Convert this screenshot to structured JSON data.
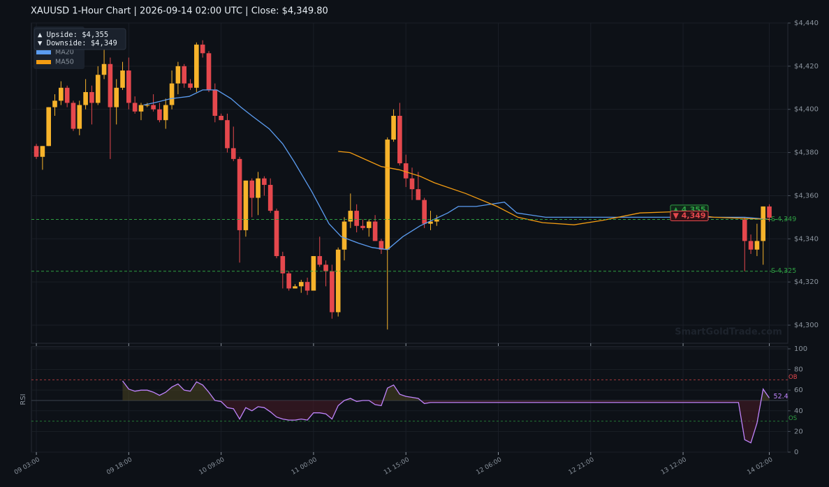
{
  "chart_data": [
    {
      "type": "candlestick",
      "title": "XAUUSD  1-Hour Chart  |  2026-09-14 02:00 UTC  |  Close: $4,349.80",
      "x": [
        0,
        1,
        2,
        3,
        4,
        5,
        6,
        7,
        8,
        9,
        10,
        11,
        12,
        13,
        14,
        15,
        16,
        17,
        18,
        19,
        20,
        21,
        22,
        23,
        24,
        25,
        26,
        27,
        28,
        29,
        30,
        31,
        32,
        33,
        34,
        35,
        36,
        37,
        38,
        39,
        40,
        41,
        42,
        43,
        44,
        45,
        46,
        47,
        48,
        49,
        50,
        51,
        52,
        53,
        54,
        55,
        56,
        57,
        58,
        59,
        60,
        61,
        62,
        63,
        64,
        65,
        115,
        116,
        117,
        118,
        119
      ],
      "open": [
        4383,
        4378,
        4383,
        4401,
        4404,
        4410,
        4403,
        4391,
        4402,
        4408,
        4403,
        4416,
        4421,
        4401,
        4410,
        4418,
        4403,
        4399,
        4402,
        4402,
        4400,
        4395,
        4402,
        4412,
        4420,
        4412,
        4410,
        4430,
        4426,
        4409,
        4397,
        4395,
        4382,
        4377,
        4344,
        4367,
        4359,
        4368,
        4365,
        4353,
        4332,
        4324,
        4317,
        4318,
        4320,
        4316,
        4332,
        4328,
        4325,
        4306,
        4335,
        4348,
        4353,
        4346,
        4345,
        4348,
        4339,
        4335,
        4386,
        4397,
        4375,
        4368,
        4363,
        4358,
        4347,
        4348,
        4349,
        4339,
        4335,
        4339,
        4355
      ],
      "high": [
        4384,
        4383,
        4401,
        4407,
        4413,
        4411,
        4404,
        4404,
        4414,
        4411,
        4420,
        4428,
        4424,
        4414,
        4422,
        4424,
        4406,
        4403,
        4403,
        4407,
        4403,
        4405,
        4418,
        4422,
        4421,
        4414,
        4431,
        4432,
        4427,
        4412,
        4398,
        4398,
        4392,
        4378,
        4367,
        4368,
        4371,
        4369,
        4368,
        4354,
        4334,
        4325,
        4319,
        4321,
        4322,
        4332,
        4341,
        4330,
        4328,
        4336,
        4350,
        4361,
        4356,
        4349,
        4349,
        4351,
        4340,
        4387,
        4400,
        4403,
        4379,
        4373,
        4371,
        4359,
        4353,
        4351,
        4350,
        4342,
        4347,
        4355,
        4356
      ],
      "low": [
        4377,
        4372,
        4383,
        4397,
        4402,
        4401,
        4390,
        4388,
        4400,
        4393,
        4402,
        4414,
        4377,
        4393,
        4409,
        4400,
        4398,
        4395,
        4401,
        4399,
        4394,
        4391,
        4400,
        4407,
        4410,
        4409,
        4408,
        4424,
        4408,
        4394,
        4395,
        4380,
        4376,
        4329,
        4341,
        4350,
        4351,
        4360,
        4352,
        4331,
        4317,
        4316,
        4317,
        4315,
        4314,
        4316,
        4327,
        4318,
        4303,
        4304,
        4330,
        4345,
        4343,
        4344,
        4341,
        4339,
        4333,
        4298,
        4385,
        4374,
        4364,
        4358,
        4358,
        4345,
        4344,
        4346,
        4325,
        4333,
        4332,
        4328,
        4348
      ],
      "close": [
        4378,
        4383,
        4401,
        4404,
        4410,
        4403,
        4391,
        4402,
        4408,
        4403,
        4416,
        4421,
        4401,
        4410,
        4418,
        4403,
        4399,
        4402,
        4402,
        4400,
        4395,
        4402,
        4412,
        4420,
        4412,
        4410,
        4430,
        4426,
        4409,
        4397,
        4395,
        4382,
        4377,
        4344,
        4367,
        4359,
        4368,
        4365,
        4353,
        4332,
        4324,
        4317,
        4318,
        4320,
        4316,
        4332,
        4328,
        4325,
        4306,
        4335,
        4348,
        4353,
        4346,
        4345,
        4348,
        4339,
        4335,
        4386,
        4397,
        4375,
        4368,
        4363,
        4358,
        4347,
        4348,
        4349,
        4339,
        4335,
        4339,
        4355,
        4349.8
      ],
      "up_color": "#f7b32b",
      "down_color": "#e5484d",
      "series": [
        {
          "name": "MA20",
          "color": "#5b9cf0",
          "x": [
            17.4,
            19.1,
            21.9,
            24.8,
            27,
            29.3,
            31.6,
            33.2,
            35,
            37.8,
            40,
            41.8,
            44.7,
            47.5,
            49.5,
            52.3,
            54.5,
            57,
            59.5,
            62.3,
            66.8,
            68.5,
            71.4,
            76,
            78,
            82.7,
            115,
            119
          ],
          "values": [
            4402,
            4403,
            4405,
            4406,
            4409,
            4409,
            4405,
            4401,
            4397,
            4391,
            4384,
            4376,
            4362,
            4347,
            4341,
            4338,
            4336,
            4335,
            4341,
            4346,
            4352,
            4355,
            4355,
            4357,
            4352,
            4350,
            4350,
            4349
          ]
        },
        {
          "name": "MA50",
          "color": "#f39c12",
          "x": [
            49,
            50.9,
            56,
            58.9,
            62.3,
            64.6,
            69.7,
            74.8,
            78.2,
            82.2,
            87.3,
            91.8,
            98,
            103.2,
            110,
            114.5,
            119
          ],
          "values": [
            4380.5,
            4380,
            4373.5,
            4372,
            4369,
            4366,
            4361,
            4355,
            4350,
            4347.5,
            4346.5,
            4348.5,
            4352,
            4352.5,
            4350,
            4349.5,
            4349
          ]
        }
      ],
      "support": [
        {
          "value": 4349,
          "label": "S 4,349"
        },
        {
          "value": 4325,
          "label": "S 4,325"
        }
      ],
      "support_color": "#2ea043",
      "price_tags": [
        {
          "value": 4355,
          "label": "▲ 4,355",
          "color": "#2ea043"
        },
        {
          "value": 4349,
          "label": "▼ 4,349",
          "color": "#e5484d"
        }
      ],
      "info_box": [
        "▲ Upside:   $4,355",
        "▼ Downside: $4,349"
      ],
      "watermark": "SmartGoldTrade.com",
      "xlim": [
        -0.8,
        122.0
      ],
      "ylim": [
        4291.6,
        4440
      ],
      "yticks": [
        {
          "value": 4300,
          "label": "$4,300"
        },
        {
          "value": 4320,
          "label": "$4,320"
        },
        {
          "value": 4340,
          "label": "$4,340"
        },
        {
          "value": 4360,
          "label": "$4,360"
        },
        {
          "value": 4380,
          "label": "$4,380"
        },
        {
          "value": 4400,
          "label": "$4,400"
        },
        {
          "value": 4420,
          "label": "$4,420"
        },
        {
          "value": 4440,
          "label": "$4,440"
        }
      ],
      "grid": true
    },
    {
      "type": "line",
      "ylabel": "RSI",
      "x": [
        14,
        15,
        16,
        17,
        18,
        19,
        20,
        21,
        22,
        23,
        24,
        25,
        26,
        27,
        28,
        29,
        30,
        31,
        32,
        33,
        34,
        35,
        36,
        37,
        38,
        39,
        40,
        41,
        42,
        43,
        44,
        45,
        46,
        47,
        48,
        49,
        50,
        51,
        52,
        53,
        54,
        55,
        56,
        57,
        58,
        59,
        60,
        61,
        62,
        63,
        64,
        65,
        114,
        115,
        116,
        117,
        118,
        119
      ],
      "values": [
        69,
        61,
        59,
        60,
        60,
        58,
        55,
        58,
        63,
        66,
        60,
        59,
        68,
        65,
        58,
        50,
        49,
        43,
        42,
        32,
        43,
        40,
        44,
        43,
        39,
        34,
        32,
        31,
        31,
        32,
        31,
        38,
        38,
        37,
        32,
        45,
        50,
        52,
        49,
        50,
        50,
        46,
        45,
        62,
        65,
        56,
        54,
        53,
        52,
        47,
        48,
        48,
        48,
        12,
        9,
        28,
        61,
        52.4
      ],
      "color": "#c084fc",
      "midline": 50,
      "levels": [
        {
          "value": 70,
          "label": "OB",
          "color": "#e5484d"
        },
        {
          "value": 30,
          "label": "OS",
          "color": "#2ea043"
        }
      ],
      "xlim": [
        -0.8,
        122.0
      ],
      "ylim": [
        0,
        102
      ],
      "yticks": [
        0,
        20,
        40,
        60,
        80,
        100
      ],
      "xticks": [
        {
          "value": 0,
          "label": "09 03:00"
        },
        {
          "value": 15,
          "label": "09 18:00"
        },
        {
          "value": 30,
          "label": "10 09:00"
        },
        {
          "value": 45,
          "label": "11 00:00"
        },
        {
          "value": 60,
          "label": "11 15:00"
        },
        {
          "value": 75,
          "label": "12 06:00"
        },
        {
          "value": 90,
          "label": "12 21:00"
        },
        {
          "value": 105,
          "label": "13 12:00"
        },
        {
          "value": 119,
          "label": "14 02:00"
        }
      ],
      "grid": true
    }
  ]
}
